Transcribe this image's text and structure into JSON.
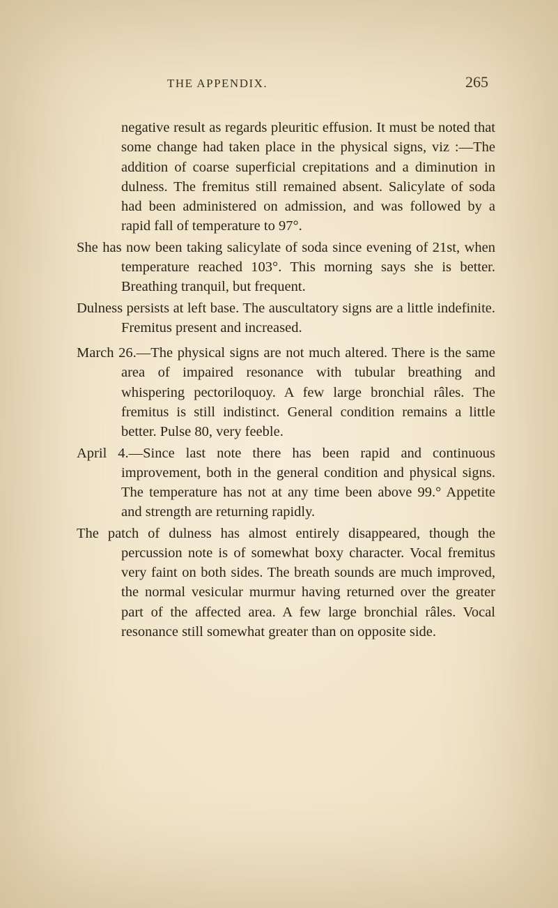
{
  "page": {
    "running_title": "THE APPENDIX.",
    "page_number": "265",
    "background_color": "#f5ead4",
    "text_color": "#2a2418",
    "font_family": "Georgia, 'Times New Roman', serif",
    "body_fontsize": 20.5,
    "line_height": 1.38
  },
  "paragraphs": {
    "p1": "negative result as regards pleuritic effusion. It must be noted that some change had taken place in the physical signs, viz :—The addition of coarse superficial crepitations and a diminution in dulness. The fremitus still remained absent. Salicylate of soda had been administered on admission, and was followed by a rapid fall of temperature to 97°.",
    "p2": "She has now been taking salicylate of soda since evening of 21st, when temperature reached 103°. This morning says she is better. Breathing tranquil, but frequent.",
    "p3": "Dulness persists at left base. The auscultatory signs are a little indefinite. Fremitus present and increased.",
    "p4": "March 26.—The physical signs are not much altered. There is the same area of impaired resonance with tubular breathing and whispering pectoriloquoy. A few large bronchial râles. The fremitus is still indistinct. General condition remains a little better. Pulse 80, very feeble.",
    "p5": "April 4.—Since last note there has been rapid and continuous improvement, both in the general condition and physical signs. The temperature has not at any time been above 99.° Appetite and strength are returning rapidly.",
    "p6": "The patch of dulness has almost entirely disappeared, though the percussion note is of somewhat boxy character. Vocal fremitus very faint on both sides. The breath sounds are much improved, the normal vesicular murmur having returned over the greater part of the affected area. A few large bronchial râles. Vocal resonance still somewhat greater than on opposite side."
  }
}
